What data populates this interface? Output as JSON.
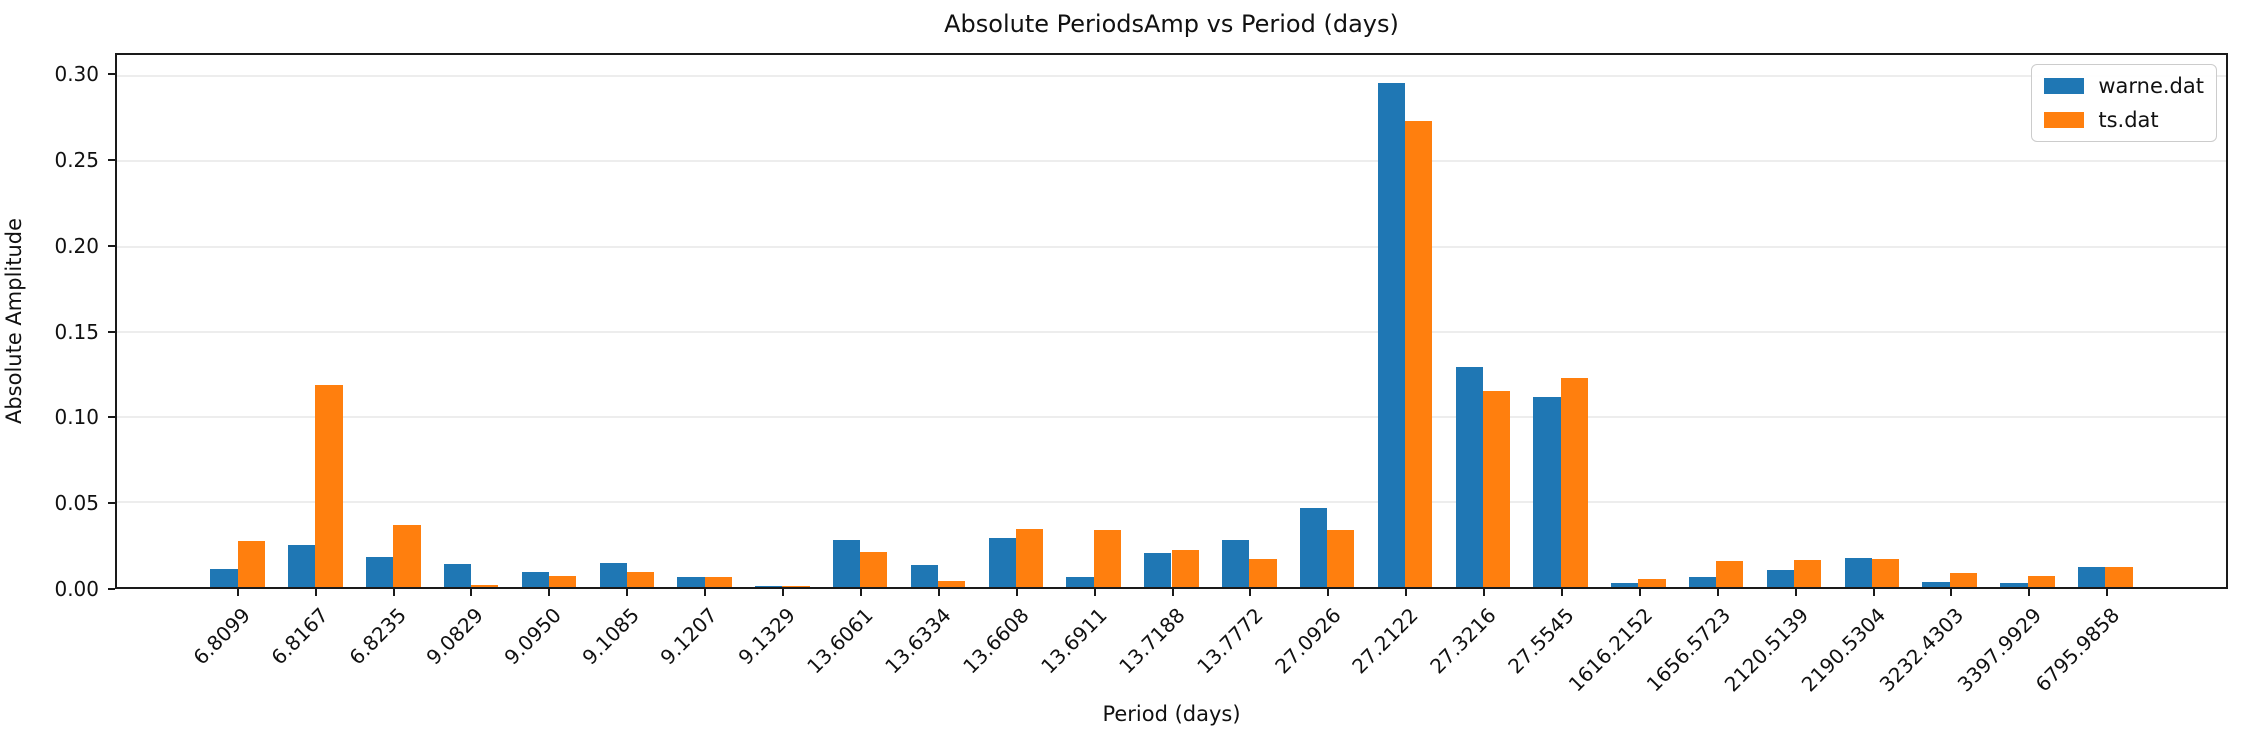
{
  "figure": {
    "title": "Absolute PeriodsAmp vs Period (days)"
  },
  "chart_data": {
    "type": "bar",
    "title": "Absolute PeriodsAmp vs Period (days)",
    "xlabel": "Period (days)",
    "ylabel": "Absolute Amplitude",
    "categories": [
      "6.8099",
      "6.8167",
      "6.8235",
      "9.0829",
      "9.0950",
      "9.1085",
      "9.1207",
      "9.1329",
      "13.6061",
      "13.6334",
      "13.6608",
      "13.6911",
      "13.7188",
      "13.7772",
      "27.0926",
      "27.2122",
      "27.3216",
      "27.5545",
      "1616.2152",
      "1656.5723",
      "2120.5139",
      "2190.5304",
      "3232.4303",
      "3397.9929",
      "6795.9858"
    ],
    "series": [
      {
        "name": "warne.dat",
        "color": "#1f77b4",
        "values": [
          0.0105,
          0.0249,
          0.0175,
          0.0133,
          0.0088,
          0.0143,
          0.006,
          0.0005,
          0.0274,
          0.0132,
          0.0286,
          0.006,
          0.02,
          0.0276,
          0.0465,
          0.2963,
          0.129,
          0.1117,
          0.0025,
          0.0058,
          0.0099,
          0.017,
          0.0029,
          0.0021,
          0.0117
        ]
      },
      {
        "name": "ts.dat",
        "color": "#ff7f0e",
        "values": [
          0.0268,
          0.1189,
          0.0366,
          0.001,
          0.0066,
          0.0089,
          0.006,
          0.0005,
          0.0206,
          0.0035,
          0.0342,
          0.0333,
          0.0215,
          0.0165,
          0.0333,
          0.2737,
          0.1154,
          0.1226,
          0.0045,
          0.0152,
          0.0158,
          0.0167,
          0.008,
          0.0062,
          0.0117
        ]
      }
    ],
    "y_ticks": [
      0.0,
      0.05,
      0.1,
      0.15,
      0.2,
      0.25,
      0.3
    ],
    "ylim": [
      0,
      0.3125
    ],
    "bar_width": 0.35,
    "grid": "horizontal",
    "legend_position": "upper right",
    "x_tick_rotation": 45
  }
}
